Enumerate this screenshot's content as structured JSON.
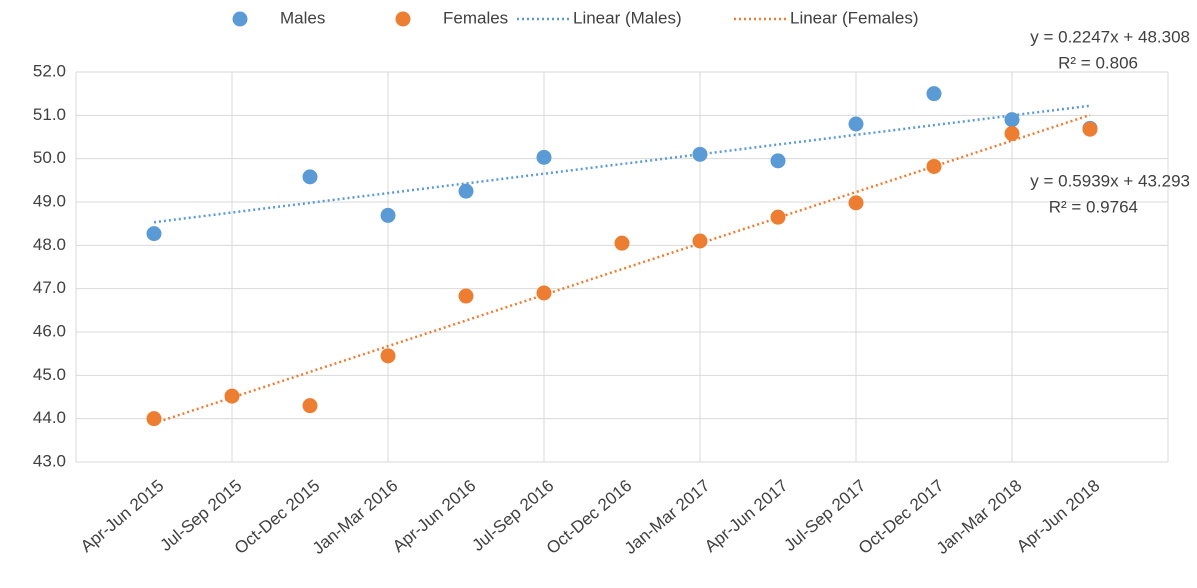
{
  "chart_data": {
    "type": "scatter",
    "categories": [
      "Apr-Jun 2015",
      "Jul-Sep 2015",
      "Oct-Dec 2015",
      "Jan-Mar 2016",
      "Apr-Jun 2016",
      "Jul-Sep 2016",
      "Oct-Dec 2016",
      "Jan-Mar 2017",
      "Apr-Jun 2017",
      "Jul-Sep 2017",
      "Oct-Dec 2017",
      "Jan-Mar 2018",
      "Apr-Jun 2018"
    ],
    "series": [
      {
        "name": "Males",
        "color": "#5b9bd5",
        "values": [
          48.27,
          null,
          49.58,
          48.69,
          49.25,
          50.03,
          null,
          50.1,
          49.95,
          50.8,
          51.5,
          50.9,
          50.7
        ],
        "trendline": {
          "name": "Linear (Males)",
          "equation": "y = 0.2247x + 48.308",
          "r2": "R² = 0.806"
        }
      },
      {
        "name": "Females",
        "color": "#ed7d31",
        "values": [
          44.0,
          44.52,
          44.3,
          45.45,
          46.83,
          46.9,
          48.05,
          48.1,
          48.65,
          48.98,
          49.82,
          50.58,
          50.68
        ],
        "trendline": {
          "name": "Linear (Females)",
          "equation": "y = 0.5939x + 43.293",
          "r2": "R² = 0.9764"
        }
      }
    ],
    "ylim": [
      43,
      52
    ],
    "yticks": [
      {
        "value": 43,
        "label": "43.0"
      },
      {
        "value": 44,
        "label": "44.0"
      },
      {
        "value": 45,
        "label": "45.0"
      },
      {
        "value": 46,
        "label": "46.0"
      },
      {
        "value": 47,
        "label": "47.0"
      },
      {
        "value": 48,
        "label": "48.0"
      },
      {
        "value": 49,
        "label": "49.0"
      },
      {
        "value": 50,
        "label": "50.0"
      },
      {
        "value": 51,
        "label": "51.0"
      },
      {
        "value": 52,
        "label": "52.0"
      }
    ],
    "grid": true,
    "legend": "top"
  }
}
